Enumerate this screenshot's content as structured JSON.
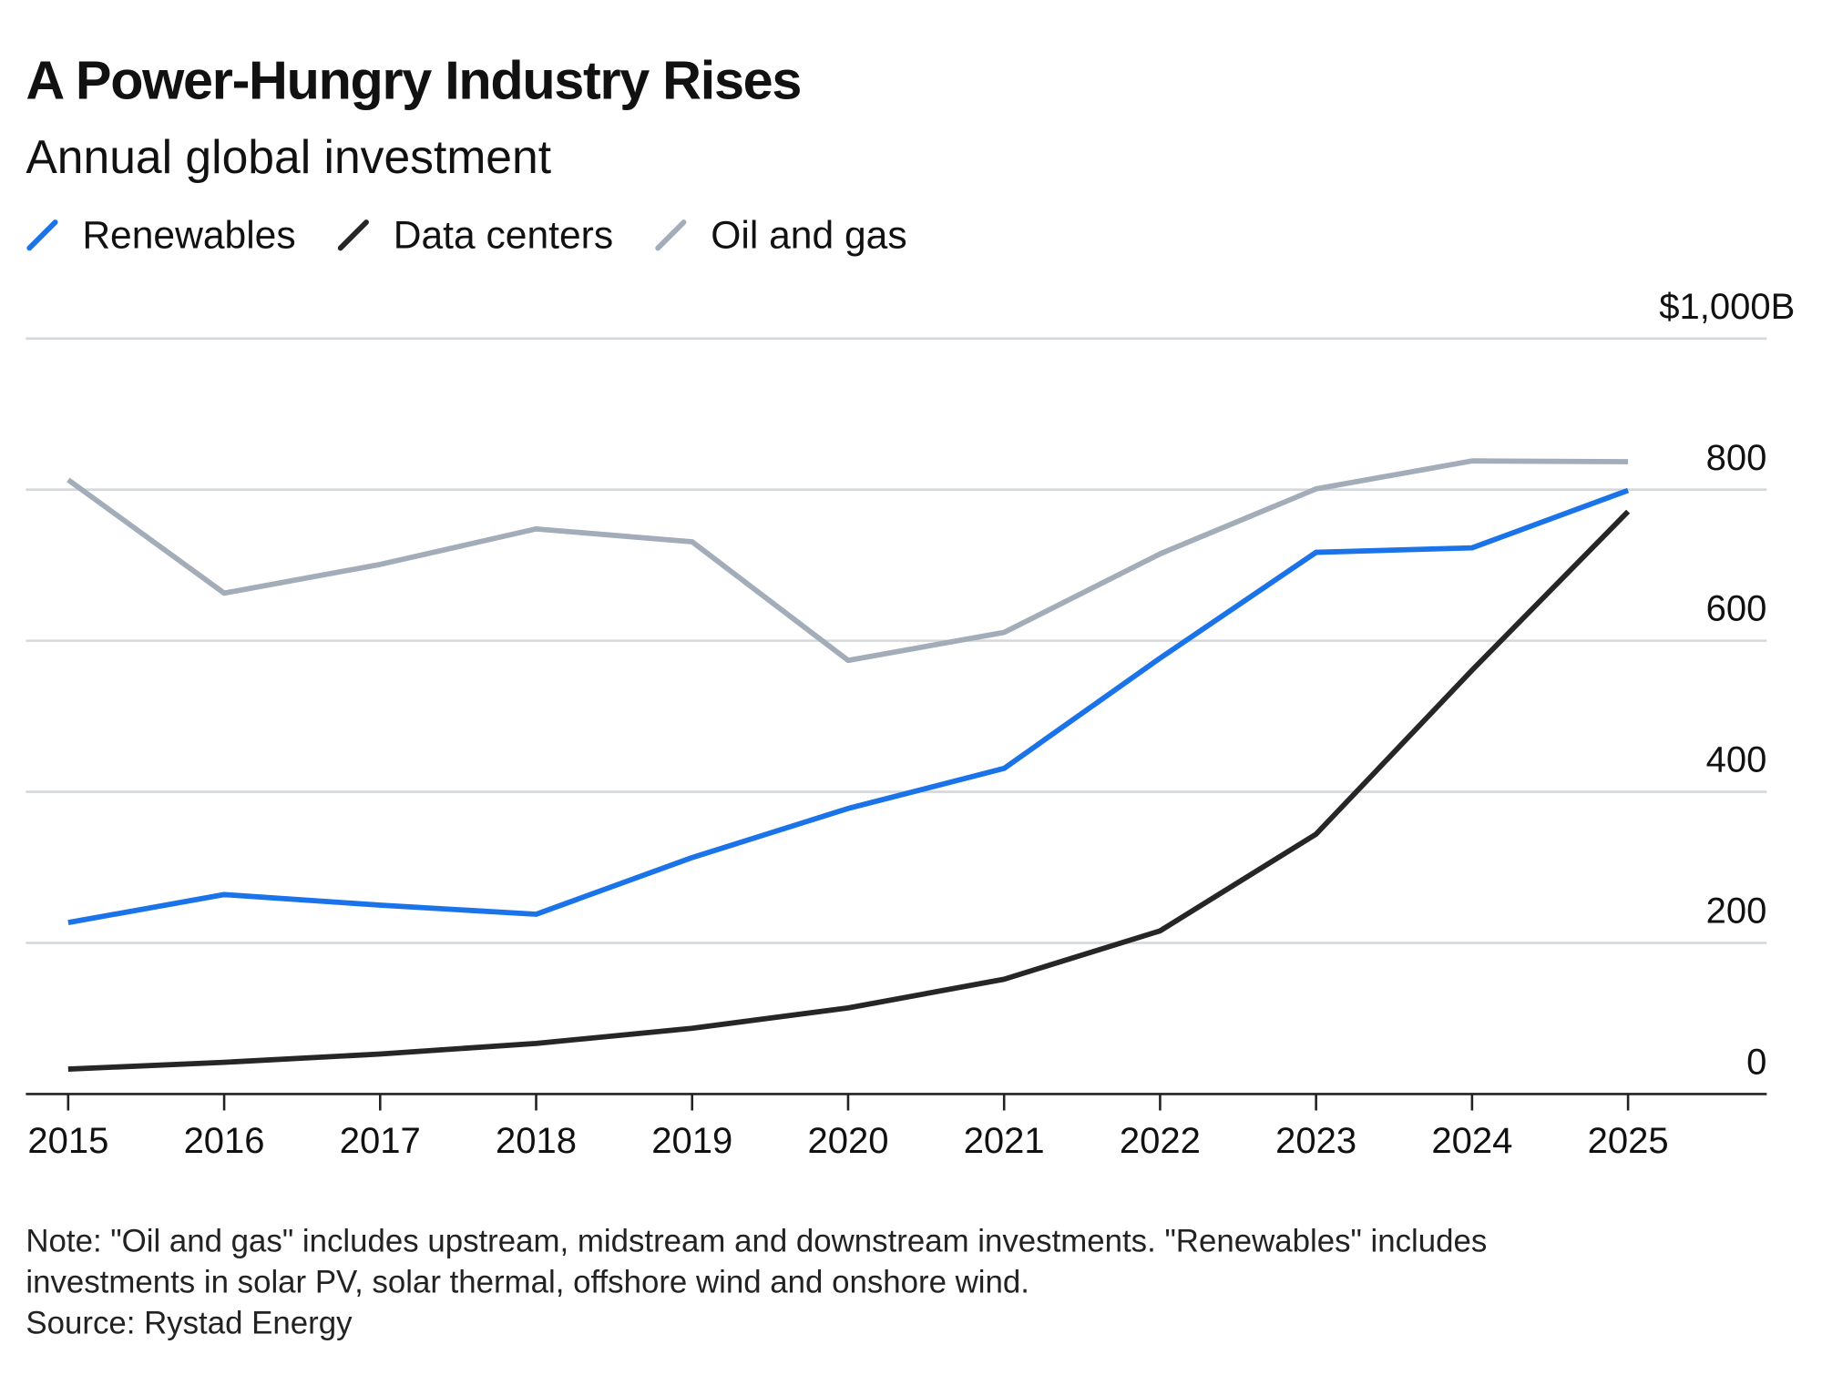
{
  "chart_data": {
    "type": "line",
    "title": "A Power-Hungry Industry Rises",
    "subtitle": "Annual global investment",
    "categories": [
      "2015",
      "2016",
      "2017",
      "2018",
      "2019",
      "2020",
      "2021",
      "2022",
      "2023",
      "2024",
      "2025"
    ],
    "series": [
      {
        "name": "Renewables",
        "color": "#1a73e8",
        "values": [
          227,
          264,
          250,
          238,
          313,
          378,
          431,
          577,
          717,
          723,
          799
        ]
      },
      {
        "name": "Data centers",
        "color": "#262626",
        "values": [
          33,
          42,
          53,
          67,
          87,
          114,
          152,
          216,
          344,
          561,
          771
        ]
      },
      {
        "name": "Oil and gas",
        "color": "#a3acb9",
        "values": [
          813,
          663,
          701,
          748,
          731,
          574,
          611,
          715,
          801,
          838,
          837
        ]
      }
    ],
    "ylim": [
      0,
      1000
    ],
    "yticks": [
      0,
      200,
      400,
      600,
      800,
      {
        "value": 1000,
        "label": "$1,000B"
      }
    ],
    "grid": true,
    "legend": "top-left",
    "notes": [
      "Note: \"Oil and gas\" includes upstream, midstream and downstream investments. \"Renewables\" includes",
      "investments in solar PV, solar thermal, offshore wind and onshore wind."
    ],
    "source": "Source: Rystad Energy"
  }
}
